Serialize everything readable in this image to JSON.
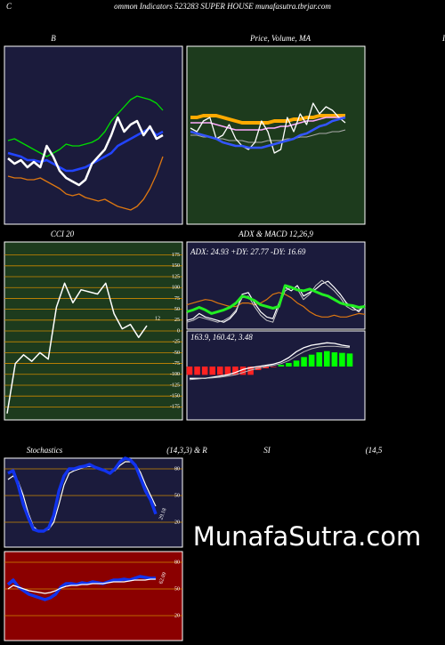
{
  "header": {
    "left": "C",
    "title": "ommon  Indicators 523283 SUPER HOUSE munafasutra.tbrjar.com",
    "right_edge": "I"
  },
  "watermark": "MunafaSutra.com",
  "chart_data": [
    {
      "type": "line",
      "title": "B",
      "ylim": [
        0,
        100
      ],
      "series": [
        {
          "color": "#00dd00",
          "values": [
            47,
            48,
            46,
            44,
            42,
            40,
            38,
            40,
            42,
            45,
            44,
            44,
            45,
            46,
            48,
            52,
            58,
            62,
            66,
            70,
            72,
            71,
            70,
            68,
            64
          ]
        },
        {
          "color": "#dd7711",
          "values": [
            27,
            26,
            26,
            25,
            25,
            26,
            24,
            22,
            20,
            17,
            16,
            17,
            15,
            14,
            13,
            14,
            12,
            10,
            9,
            8,
            10,
            14,
            20,
            28,
            38
          ]
        },
        {
          "color": "#2244ff",
          "values": [
            40,
            39,
            38,
            36,
            36,
            35,
            36,
            34,
            32,
            30,
            30,
            31,
            32,
            34,
            36,
            38,
            40,
            44,
            46,
            48,
            50,
            52,
            54,
            50,
            52
          ]
        },
        {
          "color": "#ffffff",
          "values": [
            37,
            34,
            36,
            32,
            35,
            32,
            44,
            38,
            30,
            26,
            24,
            22,
            25,
            34,
            38,
            42,
            50,
            60,
            52,
            56,
            58,
            50,
            55,
            48,
            50
          ]
        }
      ]
    },
    {
      "type": "line",
      "title": "Price,  Volume,  MA",
      "ylim": [
        0,
        100
      ],
      "series": [
        {
          "color": "#ffaa00",
          "values": [
            60,
            60,
            61,
            61,
            61,
            60,
            59,
            58,
            57,
            57,
            57,
            57,
            57,
            58,
            58,
            58,
            59,
            59,
            60,
            60,
            61,
            61,
            61,
            61,
            61
          ]
        },
        {
          "color": "#ffaaff",
          "values": [
            57,
            57,
            57,
            57,
            56,
            55,
            54,
            53,
            53,
            53,
            53,
            53,
            54,
            54,
            55,
            55,
            56,
            57,
            58,
            58,
            59,
            60,
            60,
            60,
            60
          ]
        },
        {
          "color": "#aaaaaa",
          "values": [
            50,
            50,
            49,
            49,
            48,
            48,
            47,
            47,
            47,
            46,
            46,
            46,
            47,
            47,
            47,
            48,
            48,
            49,
            49,
            50,
            51,
            51,
            52,
            52,
            53
          ]
        },
        {
          "color": "#ffffff",
          "values": [
            54,
            52,
            58,
            60,
            48,
            50,
            56,
            48,
            44,
            42,
            46,
            58,
            52,
            40,
            42,
            60,
            52,
            62,
            56,
            68,
            62,
            66,
            64,
            60,
            57
          ]
        },
        {
          "color": "#3355ff",
          "values": [
            52,
            51,
            50,
            49,
            48,
            46,
            45,
            44,
            44,
            43,
            43,
            43,
            44,
            45,
            46,
            47,
            48,
            50,
            51,
            53,
            55,
            56,
            58,
            59,
            60
          ]
        }
      ]
    },
    {
      "type": "line",
      "title": "CCI 20",
      "ylim": [
        -205,
        205
      ],
      "grid": true,
      "yticks": [
        175,
        150,
        125,
        100,
        75,
        50,
        25,
        0,
        -25,
        -50,
        -75,
        -100,
        -125,
        -150,
        -175
      ],
      "series": [
        {
          "color": "#ffffff",
          "values": [
            -190,
            -75,
            -55,
            -70,
            -50,
            -65,
            55,
            110,
            65,
            95,
            90,
            85,
            110,
            40,
            5,
            15,
            -15,
            12
          ]
        }
      ]
    },
    {
      "type": "line",
      "title": "ADX  & MACD 12,26,9",
      "text": "ADX: 24.93  +DY: 27.77  -DY: 16.69",
      "ylim": [
        0,
        100
      ],
      "series": [
        {
          "color": "#dd7711",
          "values": [
            28,
            30,
            32,
            34,
            33,
            30,
            28,
            26,
            26,
            30,
            30,
            28,
            30,
            34,
            40,
            42,
            40,
            36,
            30,
            26,
            20,
            16,
            14,
            14,
            16,
            14,
            14,
            16,
            18,
            17
          ]
        },
        {
          "color": "#ffffff",
          "values": [
            10,
            12,
            18,
            14,
            12,
            10,
            8,
            12,
            20,
            40,
            42,
            30,
            20,
            14,
            12,
            30,
            48,
            44,
            50,
            38,
            42,
            46,
            52,
            55,
            48,
            40,
            30,
            25,
            20,
            28
          ]
        },
        {
          "color": "#cccccc",
          "values": [
            8,
            10,
            14,
            12,
            10,
            8,
            10,
            14,
            22,
            36,
            38,
            26,
            16,
            10,
            8,
            26,
            44,
            48,
            46,
            34,
            40,
            50,
            56,
            50,
            44,
            36,
            26,
            22,
            22,
            27
          ]
        },
        {
          "color": "#22ee22",
          "values": [
            20,
            22,
            25,
            22,
            18,
            20,
            22,
            25,
            30,
            38,
            36,
            33,
            28,
            26,
            24,
            26,
            50,
            48,
            45,
            44,
            46,
            43,
            40,
            38,
            34,
            30,
            28,
            27,
            25,
            26
          ]
        }
      ]
    },
    {
      "type": "macd",
      "text": "163.9,  160.42,  3.48",
      "ylim": [
        -9,
        6
      ],
      "color": "#00ff00",
      "negative_color": "#ff2222",
      "bars": [
        -1.4,
        -1.4,
        -1.4,
        -1.4,
        -1.4,
        -1.4,
        -1.4,
        -1.4,
        -1.4,
        -0.6,
        -0.3,
        -0.1,
        0.3,
        0.6,
        1.0,
        1.6,
        2.0,
        2.4,
        2.6,
        2.4,
        2.3,
        2.2
      ],
      "series": [
        {
          "color": "#ffffff",
          "values": [
            -2,
            -2,
            -2,
            -1.8,
            -1.6,
            -1.4,
            -1,
            -0.5,
            -0.2,
            0,
            0.2,
            0.4,
            0.8,
            1.5,
            2.5,
            3.2,
            3.6,
            3.8,
            4.0,
            3.9,
            3.6,
            3.4
          ]
        },
        {
          "color": "#bbbbbb",
          "values": [
            -2.2,
            -2.1,
            -2.0,
            -1.9,
            -1.8,
            -1.6,
            -1.4,
            -1.0,
            -0.6,
            -0.3,
            0,
            0.2,
            0.5,
            1.0,
            1.8,
            2.5,
            3.0,
            3.3,
            3.4,
            3.4,
            3.3,
            3.2
          ]
        }
      ]
    },
    {
      "type": "line",
      "title_parts": [
        "Stochastics",
        "(14,3,3) & R",
        "SI",
        "(14,5"
      ],
      "ylim": [
        -8,
        92
      ],
      "grid": true,
      "yticks": [
        80,
        50,
        20
      ],
      "series": [
        {
          "color": "#ffffff",
          "values": [
            68,
            72,
            66,
            50,
            30,
            15,
            10,
            10,
            12,
            20,
            40,
            62,
            75,
            78,
            80,
            82,
            83,
            82,
            80,
            78,
            76,
            78,
            84,
            88,
            88,
            85,
            76,
            62,
            50,
            38
          ]
        },
        {
          "color": "#1133ee",
          "values": [
            75,
            78,
            62,
            40,
            25,
            12,
            10,
            10,
            14,
            28,
            55,
            72,
            80,
            80,
            82,
            83,
            85,
            82,
            80,
            78,
            75,
            80,
            88,
            92,
            90,
            84,
            70,
            55,
            45,
            29.18
          ]
        }
      ]
    },
    {
      "type": "line",
      "ylim": [
        -8,
        92
      ],
      "grid": true,
      "yticks": [
        80,
        50,
        20
      ],
      "series": [
        {
          "color": "#1133ee",
          "values": [
            55,
            60,
            52,
            48,
            44,
            42,
            40,
            38,
            40,
            44,
            52,
            56,
            56,
            55,
            57,
            56,
            58,
            57,
            56,
            58,
            60,
            60,
            61,
            60,
            62,
            64,
            63,
            62,
            62.09
          ]
        },
        {
          "color": "#ffffff",
          "values": [
            50,
            54,
            52,
            50,
            48,
            47,
            46,
            45,
            46,
            48,
            51,
            53,
            54,
            54,
            55,
            55,
            56,
            56,
            56,
            57,
            58,
            58,
            58,
            59,
            60,
            60,
            60,
            61,
            61
          ]
        }
      ]
    }
  ]
}
